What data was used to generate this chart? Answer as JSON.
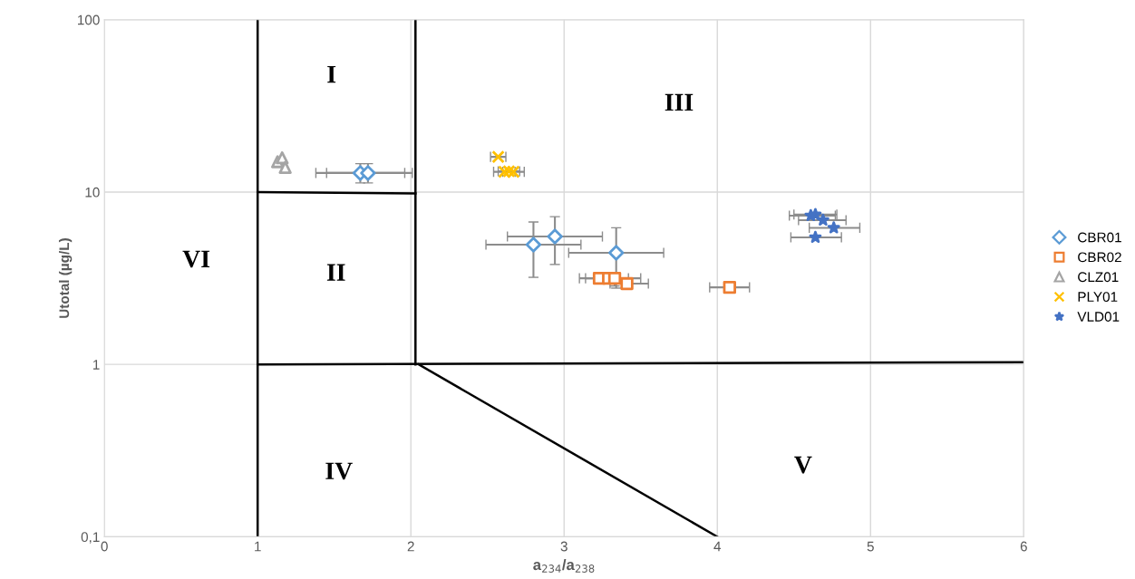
{
  "chart_data": {
    "type": "scatter",
    "xlabel": "a$_{234}$/a$_{238}$",
    "ylabel": "Utotal (µg/L)",
    "log": "y",
    "xlim": [
      0,
      6
    ],
    "ylim": [
      0.1,
      100
    ],
    "xticks": [
      0,
      1,
      2,
      3,
      4,
      5,
      6
    ],
    "yticks": [
      {
        "value": 0.1,
        "label": "0,1"
      },
      1,
      10,
      100
    ],
    "grid": true,
    "legend": "right",
    "series": [
      {
        "name": "CBR01",
        "color": "#5b9bd5",
        "marker": "diamond",
        "x": [
          1.67,
          1.72,
          2.8,
          2.94,
          3.34
        ],
        "values": [
          12.9,
          12.9,
          4.95,
          5.52,
          4.44
        ],
        "xerrors": [
          [
            1.38,
            1.96
          ],
          [
            1.45,
            2.01
          ],
          [
            2.49,
            3.11
          ],
          [
            2.63,
            3.25
          ],
          [
            3.03,
            3.65
          ]
        ],
        "errors": [
          [
            11.3,
            14.6
          ],
          [
            11.3,
            14.6
          ],
          [
            3.2,
            6.7
          ],
          [
            3.8,
            7.2
          ],
          [
            2.77,
            6.2
          ]
        ]
      },
      {
        "name": "CBR02",
        "color": "#ed7d31",
        "marker": "square",
        "x": [
          3.23,
          3.29,
          3.33,
          3.41,
          4.08
        ],
        "values": [
          3.16,
          3.16,
          3.16,
          2.94,
          2.8
        ],
        "xerrors": [
          [
            3.1,
            3.36
          ],
          [
            3.14,
            3.42
          ],
          [
            3.2,
            3.5
          ],
          [
            3.3,
            3.55
          ],
          [
            3.95,
            4.21
          ]
        ],
        "errors": [
          null,
          null,
          [
            2.85,
            3.4
          ],
          null,
          null
        ]
      },
      {
        "name": "CLZ01",
        "color": "#a5a5a5",
        "marker": "triangle",
        "x": [
          1.13,
          1.16,
          1.18
        ],
        "values": [
          15.0,
          15.8,
          13.9
        ]
      },
      {
        "name": "PLY01",
        "color": "#ffc000",
        "marker": "cross",
        "x": [
          2.57,
          2.61,
          2.64,
          2.67
        ],
        "values": [
          16.0,
          13.1,
          13.2,
          13.1
        ],
        "xerrors": [
          [
            2.52,
            2.62
          ],
          [
            2.54,
            2.68
          ],
          [
            2.57,
            2.71
          ],
          [
            2.6,
            2.74
          ]
        ]
      },
      {
        "name": "VLD01",
        "color": "#4472c4",
        "marker": "star",
        "x": [
          4.61,
          4.64,
          4.69,
          4.76,
          4.64
        ],
        "values": [
          7.3,
          7.4,
          6.87,
          6.2,
          5.46
        ],
        "xerrors": [
          [
            4.47,
            4.77
          ],
          [
            4.5,
            4.78
          ],
          [
            4.53,
            4.84
          ],
          [
            4.6,
            4.93
          ],
          [
            4.48,
            4.81
          ]
        ]
      },
      {
        "type": "line",
        "color": "#000000",
        "x": [
          1,
          1
        ],
        "values": [
          0.1,
          100
        ]
      },
      {
        "type": "line",
        "color": "#000000",
        "x": [
          2.03,
          2.03
        ],
        "values": [
          1,
          100
        ]
      },
      {
        "type": "line",
        "color": "#000000",
        "x": [
          1,
          2.03
        ],
        "values": [
          10,
          9.8
        ]
      },
      {
        "type": "line",
        "color": "#000000",
        "x": [
          1,
          6
        ],
        "values": [
          1,
          1.03
        ]
      },
      {
        "type": "line",
        "color": "#000000",
        "x": [
          2.05,
          4.0
        ],
        "values": [
          1,
          0.1
        ]
      }
    ],
    "annotations": [
      "I",
      "II",
      "III",
      "IV",
      "V",
      "VI"
    ]
  }
}
